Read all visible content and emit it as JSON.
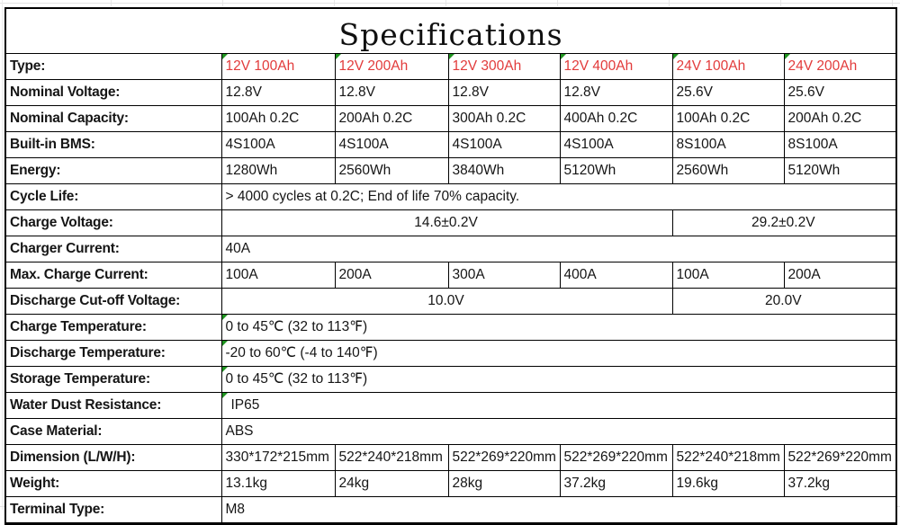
{
  "title": "Specifications",
  "colors": {
    "header_red": "#e23b3b",
    "flag_green": "#1f9420",
    "border_black": "#000000"
  },
  "table": {
    "rows": [
      {
        "label": "Type:",
        "cells": [
          {
            "text": "12V 100Ah",
            "red": true,
            "flag": true
          },
          {
            "text": "12V 200Ah",
            "red": true,
            "flag": true
          },
          {
            "text": "12V 300Ah",
            "red": true,
            "flag": true
          },
          {
            "text": "12V 400Ah",
            "red": true,
            "flag": true
          },
          {
            "text": "24V 100Ah",
            "red": true,
            "flag": true
          },
          {
            "text": "24V 200Ah",
            "red": true,
            "flag": true
          }
        ]
      },
      {
        "label": "Nominal Voltage:",
        "cells": [
          {
            "text": "12.8V"
          },
          {
            "text": "12.8V"
          },
          {
            "text": "12.8V"
          },
          {
            "text": "12.8V"
          },
          {
            "text": "25.6V"
          },
          {
            "text": "25.6V"
          }
        ]
      },
      {
        "label": "Nominal Capacity:",
        "cells": [
          {
            "text": "100Ah 0.2C"
          },
          {
            "text": "200Ah 0.2C"
          },
          {
            "text": "300Ah 0.2C"
          },
          {
            "text": "400Ah 0.2C"
          },
          {
            "text": "100Ah 0.2C"
          },
          {
            "text": "200Ah 0.2C"
          }
        ]
      },
      {
        "label": "Built-in BMS:",
        "cells": [
          {
            "text": "4S100A"
          },
          {
            "text": "4S100A"
          },
          {
            "text": "4S100A"
          },
          {
            "text": "4S100A"
          },
          {
            "text": "8S100A"
          },
          {
            "text": "8S100A"
          }
        ]
      },
      {
        "label": "Energy:",
        "cells": [
          {
            "text": "1280Wh"
          },
          {
            "text": "2560Wh"
          },
          {
            "text": "3840Wh"
          },
          {
            "text": "5120Wh"
          },
          {
            "text": "2560Wh"
          },
          {
            "text": "5120Wh"
          }
        ]
      },
      {
        "label": "Cycle Life:",
        "cells": [
          {
            "text": "> 4000 cycles at 0.2C; End of life 70% capacity.",
            "span": 6
          }
        ]
      },
      {
        "label": "Charge Voltage:",
        "cells": [
          {
            "text": "14.6±0.2V",
            "span": 4,
            "align": "center"
          },
          {
            "text": "29.2±0.2V",
            "span": 2,
            "align": "center"
          }
        ]
      },
      {
        "label": "Charger Current:",
        "cells": [
          {
            "text": "40A",
            "span": 6
          }
        ]
      },
      {
        "label": "Max. Charge Current:",
        "cells": [
          {
            "text": "100A"
          },
          {
            "text": "200A"
          },
          {
            "text": "300A"
          },
          {
            "text": "400A"
          },
          {
            "text": "100A"
          },
          {
            "text": "200A"
          }
        ]
      },
      {
        "label": "Discharge Cut-off Voltage:",
        "cells": [
          {
            "text": "10.0V",
            "span": 4,
            "align": "center"
          },
          {
            "text": "20.0V",
            "span": 2,
            "align": "center"
          }
        ]
      },
      {
        "label": "Charge Temperature:",
        "cells": [
          {
            "text": "0 to 45℃ (32 to 113℉)",
            "span": 6,
            "flag": true
          }
        ]
      },
      {
        "label": "Discharge Temperature:",
        "cells": [
          {
            "text": "-20 to 60℃ (-4 to 140℉)",
            "span": 6,
            "flag": true
          }
        ]
      },
      {
        "label": "Storage Temperature:",
        "cells": [
          {
            "text": "0 to 45℃ (32 to 113℉)",
            "span": 6,
            "flag": true
          }
        ]
      },
      {
        "label": "Water Dust Resistance:",
        "cells": [
          {
            "text": "IP65",
            "span": 6,
            "flag": true,
            "indent": true
          }
        ]
      },
      {
        "label": "Case Material:",
        "cells": [
          {
            "text": "ABS",
            "span": 6
          }
        ]
      },
      {
        "label": "Dimension (L/W/H):",
        "cells": [
          {
            "text": "330*172*215mm"
          },
          {
            "text": "522*240*218mm"
          },
          {
            "text": "522*269*220mm"
          },
          {
            "text": "522*269*220mm"
          },
          {
            "text": "522*240*218mm"
          },
          {
            "text": "522*269*220mm"
          }
        ]
      },
      {
        "label": "Weight:",
        "cells": [
          {
            "text": "13.1kg"
          },
          {
            "text": "24kg"
          },
          {
            "text": "28kg"
          },
          {
            "text": "37.2kg"
          },
          {
            "text": "19.6kg"
          },
          {
            "text": "37.2kg"
          }
        ]
      },
      {
        "label": "Terminal Type:",
        "cells": [
          {
            "text": "M8",
            "span": 6
          }
        ]
      }
    ]
  }
}
